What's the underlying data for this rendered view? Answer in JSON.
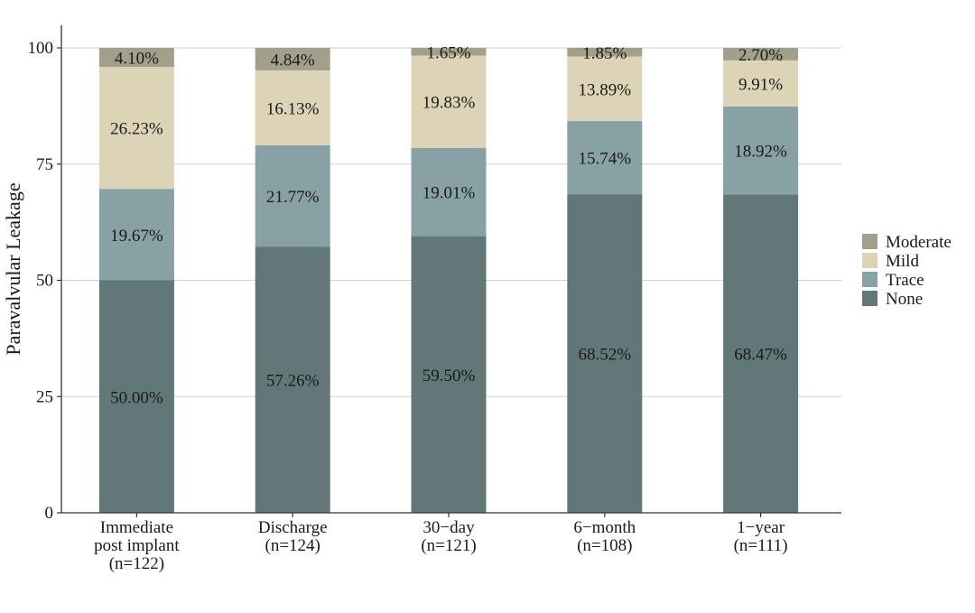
{
  "chart_data": {
    "type": "bar",
    "stacked": true,
    "title": "",
    "xlabel": "",
    "ylabel": "Paravalvular Leakage",
    "ylim": [
      0,
      100
    ],
    "yticks": [
      "0",
      "25",
      "50",
      "75",
      "100"
    ],
    "grid": true,
    "legend_position": "right",
    "categories": [
      [
        "Immediate",
        "post implant",
        "(n=122)"
      ],
      [
        "Discharge",
        "(n=124)"
      ],
      [
        "30−day",
        "(n=121)"
      ],
      [
        "6−month",
        "(n=108)"
      ],
      [
        "1−year",
        "(n=111)"
      ]
    ],
    "series": [
      {
        "name": "None",
        "color": "#627878",
        "values": [
          50.0,
          57.26,
          59.5,
          68.52,
          68.47
        ],
        "labels": [
          "50.00%",
          "57.26%",
          "59.50%",
          "68.52%",
          "68.47%"
        ]
      },
      {
        "name": "Trace",
        "color": "#87a1a5",
        "values": [
          19.67,
          21.77,
          19.01,
          15.74,
          18.92
        ],
        "labels": [
          "19.67%",
          "21.77%",
          "19.01%",
          "15.74%",
          "18.92%"
        ]
      },
      {
        "name": "Mild",
        "color": "#ddd4b8",
        "values": [
          26.23,
          16.13,
          19.83,
          13.89,
          9.91
        ],
        "labels": [
          "26.23%",
          "16.13%",
          "19.83%",
          "13.89%",
          "9.91%"
        ]
      },
      {
        "name": "Moderate",
        "color": "#a29f8b",
        "values": [
          4.1,
          4.84,
          1.65,
          1.85,
          2.7
        ],
        "labels": [
          "4.10%",
          "4.84%",
          "1.65%",
          "1.85%",
          "2.70%"
        ]
      }
    ],
    "legend_order": [
      "Moderate",
      "Mild",
      "Trace",
      "None"
    ]
  }
}
